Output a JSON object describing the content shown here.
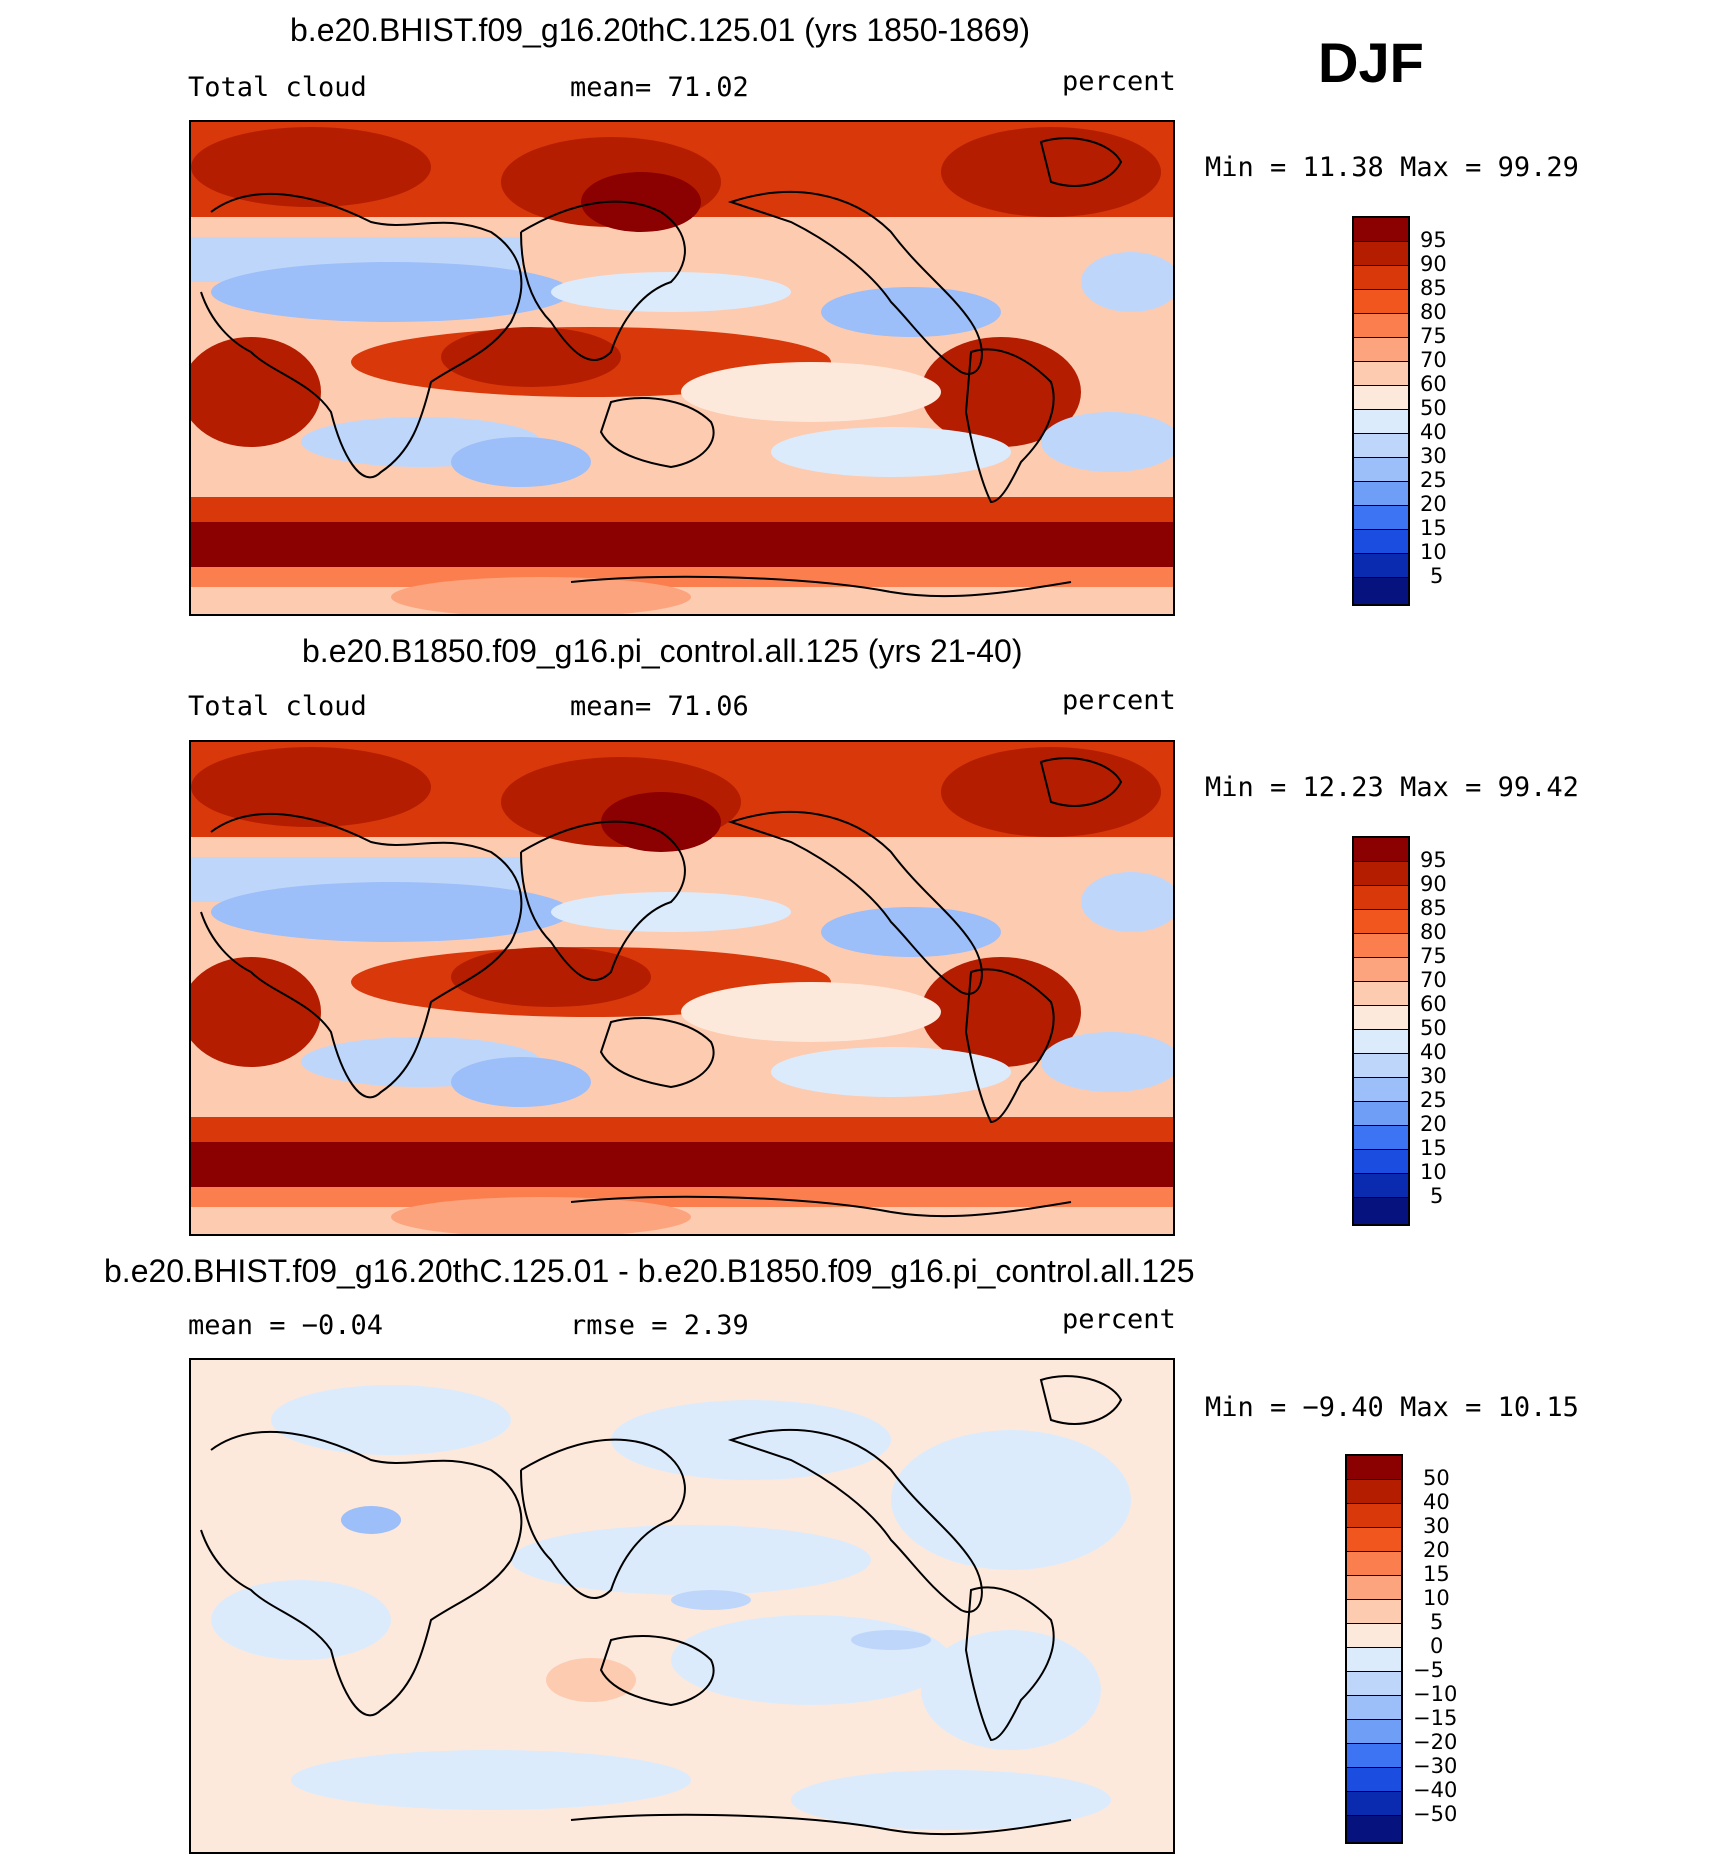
{
  "season": "DJF",
  "panels": [
    {
      "title": "b.e20.BHIST.f09_g16.20thC.125.01 (yrs 1850-1869)",
      "left_label": "Total cloud",
      "center_label": "mean=   71.02",
      "right_label": "percent",
      "minmax": "Min =   11.38 Max =   99.29"
    },
    {
      "title": "b.e20.B1850.f09_g16.pi_control.all.125 (yrs 21-40)",
      "left_label": "Total cloud",
      "center_label": "mean=   71.06",
      "right_label": "percent",
      "minmax": "Min =   12.23 Max =   99.42"
    },
    {
      "title": "b.e20.BHIST.f09_g16.20thC.125.01 - b.e20.B1850.f09_g16.pi_control.all.125",
      "left_label": "mean =   −0.04",
      "center_label": "rmse =    2.39",
      "right_label": "percent",
      "minmax": "Min =   −9.40 Max =   10.15"
    }
  ],
  "colorbars": {
    "abs": {
      "labels": [
        "95",
        "90",
        "85",
        "80",
        "75",
        "70",
        "60",
        "50",
        "40",
        "30",
        "25",
        "20",
        "15",
        "10",
        "5"
      ],
      "colors": [
        "#8b0000",
        "#b51d00",
        "#d8380a",
        "#f0561e",
        "#fb7f4e",
        "#fca47e",
        "#fdcbb0",
        "#fde9dc",
        "#dcebfb",
        "#bfd6fb",
        "#9cbef9",
        "#6f9ef6",
        "#3c74f3",
        "#1a4de0",
        "#0a2ab0",
        "#06137f"
      ]
    },
    "diff": {
      "labels": [
        "50",
        "40",
        "30",
        "20",
        "15",
        "10",
        "5",
        "0",
        "−5",
        "−10",
        "−15",
        "−20",
        "−30",
        "−40",
        "−50"
      ],
      "colors": [
        "#8b0000",
        "#b51d00",
        "#d8380a",
        "#f0561e",
        "#fb7f4e",
        "#fca47e",
        "#fdcbb0",
        "#fde9dc",
        "#dcebfb",
        "#bfd6fb",
        "#9cbef9",
        "#6f9ef6",
        "#3c74f3",
        "#1a4de0",
        "#0a2ab0",
        "#06137f"
      ]
    }
  }
}
